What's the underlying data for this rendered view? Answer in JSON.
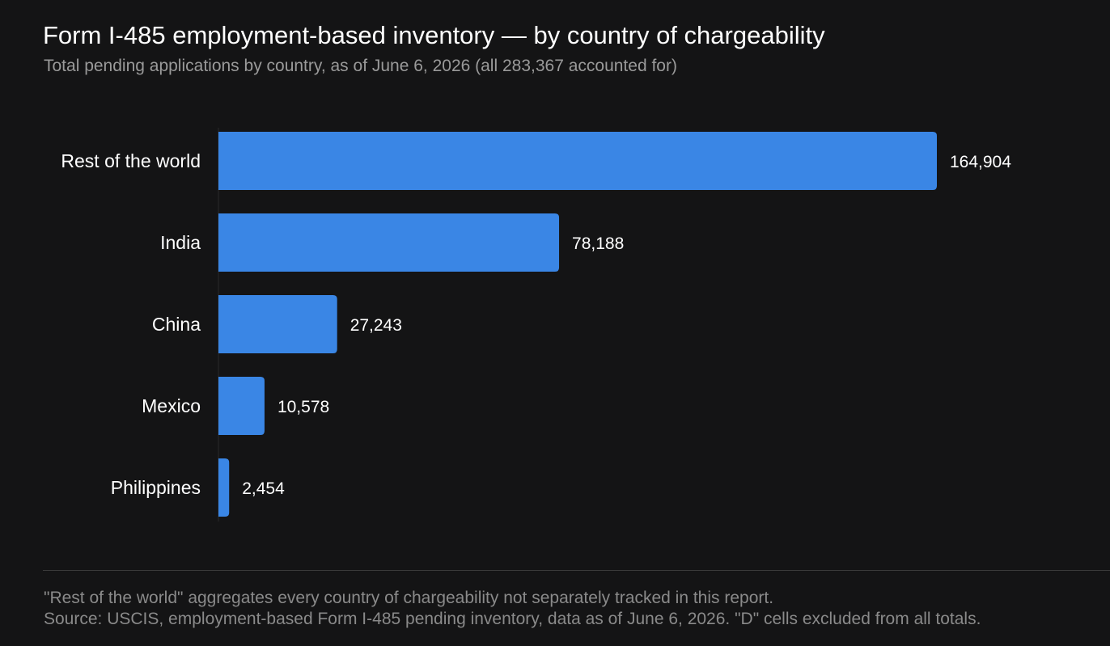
{
  "header": {
    "title": "Form I-485 employment-based inventory — by country of chargeability",
    "subtitle": "Total pending applications by country, as of June 6, 2026 (all 283,367 accounted for)"
  },
  "chart_data": {
    "type": "bar",
    "orientation": "horizontal",
    "title": "Form I-485 employment-based inventory — by country of chargeability",
    "subtitle": "Total pending applications by country, as of June 6, 2026 (all 283,367 accounted for)",
    "categories": [
      "Rest of the world",
      "India",
      "China",
      "Mexico",
      "Philippines"
    ],
    "values": [
      164904,
      78188,
      27243,
      10578,
      2454
    ],
    "value_labels": [
      "164,904",
      "78,188",
      "27,243",
      "10,578",
      "2,454"
    ],
    "xlim": [
      0,
      164904
    ],
    "grid": false,
    "legend": "none",
    "bar_color": "#3a86e5"
  },
  "footer": {
    "note": "\"Rest of the world\" aggregates every country of chargeability not separately tracked in this report.",
    "source": "Source: USCIS, employment-based Form I-485 pending inventory, data as of June 6, 2026. \"D\" cells excluded from all totals."
  },
  "colors": {
    "background": "#141415",
    "bar": "#3a86e5",
    "title": "#ffffff",
    "subtitle": "#9a9a9a",
    "footnote": "#8a8a8a"
  }
}
